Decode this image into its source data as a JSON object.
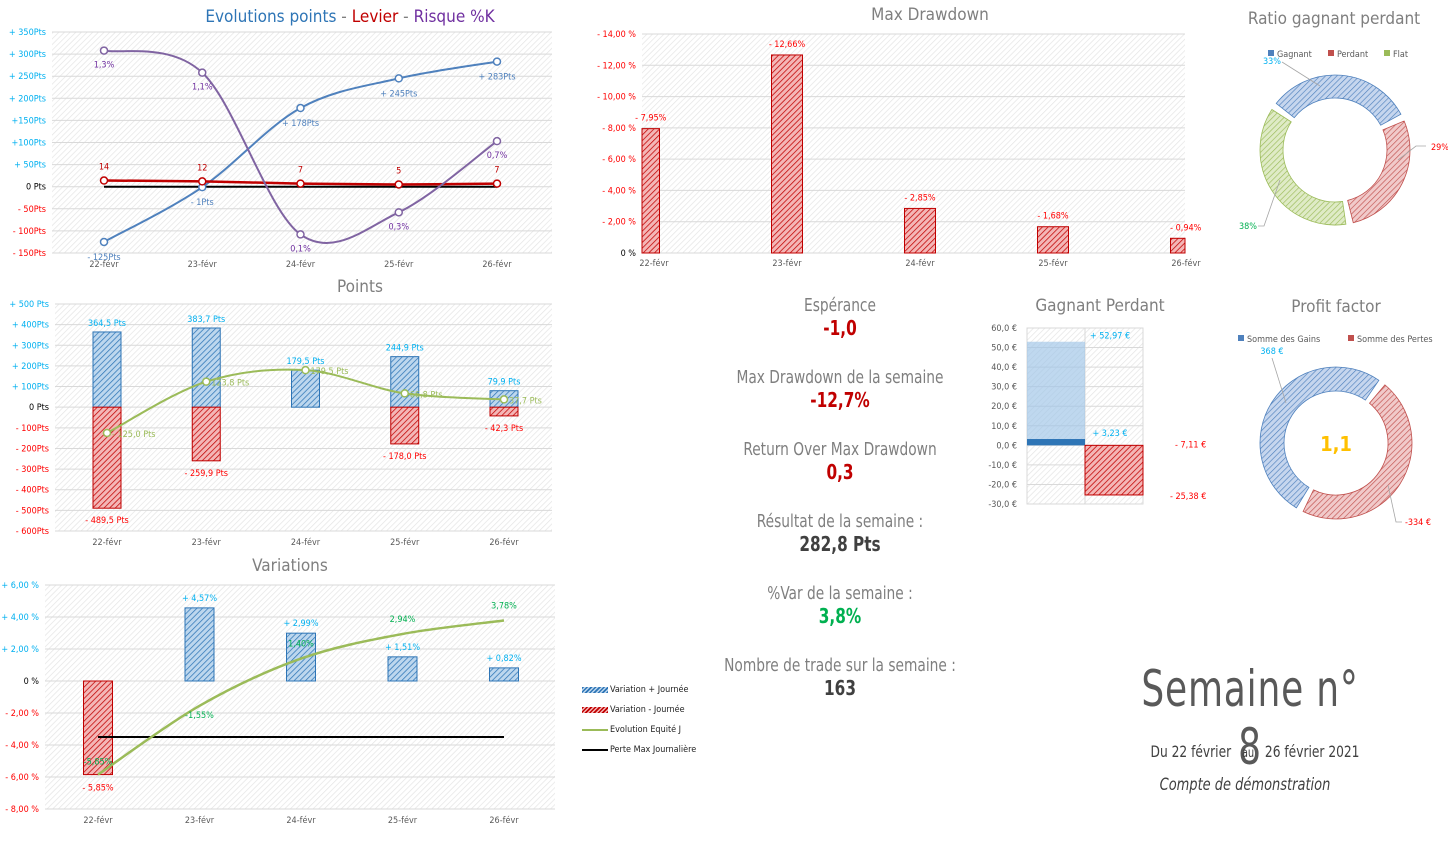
{
  "colors": {
    "blue": "#4f81bd",
    "cyan": "#00b0f0",
    "red": "#c00000",
    "bright_red": "#ff0000",
    "purple": "#7030a0",
    "green_line": "#9bbb59",
    "green_text": "#00b050",
    "gold": "#ffc000",
    "grey": "#7f7f7f"
  },
  "chart_data": [
    {
      "id": "evolution",
      "type": "line",
      "title_parts": [
        "Evolutions points",
        " - ",
        "Levier",
        " - ",
        "Risque %K"
      ],
      "categories": [
        "22-févr",
        "23-févr",
        "24-févr",
        "25-févr",
        "26-févr"
      ],
      "ylim": [
        -150,
        350
      ],
      "yticks": [
        350,
        300,
        250,
        200,
        150,
        100,
        50,
        0,
        -50,
        -100,
        -150
      ],
      "ytick_labels": [
        "+ 350Pts",
        "+ 300Pts",
        "+ 250Pts",
        "+ 200Pts",
        "+150Pts",
        "+100Pts",
        "+ 50Pts",
        "0 Pts",
        "- 50Pts",
        "- 100Pts",
        "- 150Pts"
      ],
      "series": [
        {
          "name": "Points",
          "values": [
            -125,
            -1,
            178,
            245,
            283
          ],
          "labels": [
            "- 125Pts",
            "- 1Pts",
            "+ 178Pts",
            "+ 245Pts",
            "+ 283Pts"
          ]
        },
        {
          "name": "Levier",
          "values": [
            14,
            12,
            7,
            5,
            7
          ],
          "labels": [
            "14",
            "12",
            "7",
            "5",
            "7"
          ]
        },
        {
          "name": "Risque %K",
          "values": [
            1.3,
            1.1,
            0.1,
            0.3,
            0.7
          ],
          "labels": [
            "1,3%",
            "1,1%",
            "0,1%",
            "0,3%",
            "0,7%"
          ],
          "plot_positions": [
            308,
            258,
            -108,
            -58,
            103
          ]
        },
        {
          "name": "Zero",
          "values": [
            0,
            0,
            0,
            0,
            0
          ]
        }
      ],
      "grid": true
    },
    {
      "id": "points",
      "type": "bar",
      "title": "Points",
      "categories": [
        "22-févr",
        "23-févr",
        "24-févr",
        "25-févr",
        "26-févr"
      ],
      "ylim": [
        -600,
        500
      ],
      "yticks": [
        500,
        400,
        300,
        200,
        100,
        0,
        -100,
        -200,
        -300,
        -400,
        -500,
        -600
      ],
      "ytick_labels": [
        "+ 500 Pts",
        "+ 400Pts",
        "+ 300Pts",
        "+ 200Pts",
        "+ 100Pts",
        "0 Pts",
        "- 100Pts",
        "- 200Pts",
        "- 300Pts",
        "- 400Pts",
        "- 500Pts",
        "- 600Pts"
      ],
      "series": [
        {
          "name": "Gains",
          "values": [
            364.5,
            383.7,
            179.5,
            244.9,
            79.9
          ],
          "labels": [
            "364,5 Pts",
            "383,7 Pts",
            "179,5 Pts",
            "244,9 Pts",
            "79,9 Pts"
          ]
        },
        {
          "name": "Pertes",
          "values": [
            -489.5,
            -259.9,
            0,
            -178.0,
            -42.3
          ],
          "labels": [
            "- 489,5 Pts",
            "- 259,9 Pts",
            "",
            "- 178,0 Pts",
            "- 42,3 Pts"
          ]
        },
        {
          "name": "Net",
          "values": [
            -125.0,
            123.8,
            179.5,
            66.8,
            37.7
          ],
          "labels": [
            "- 125,0 Pts",
            "123,8 Pts",
            "179,5 Pts",
            "66,8 Pts",
            "37,7 Pts"
          ]
        }
      ],
      "grid": true
    },
    {
      "id": "variations",
      "type": "bar",
      "title": "Variations",
      "categories": [
        "22-févr",
        "23-févr",
        "24-févr",
        "25-févr",
        "26-févr"
      ],
      "ylim": [
        -8,
        6
      ],
      "yticks": [
        6,
        4,
        2,
        0,
        -2,
        -4,
        -6,
        -8
      ],
      "ytick_labels": [
        "+ 6,00 %",
        "+ 4,00 %",
        "+ 2,00 %",
        "0 %",
        "- 2,00 %",
        "- 4,00 %",
        "- 6,00 %",
        "- 8,00 %"
      ],
      "series": [
        {
          "name": "Variation + Journée",
          "values": [
            0,
            4.57,
            2.99,
            1.51,
            0.82
          ],
          "labels": [
            "",
            "+ 4,57%",
            "+ 2,99%",
            "+ 1,51%",
            "+ 0,82%"
          ]
        },
        {
          "name": "Variation - Journée",
          "values": [
            -5.85,
            0,
            0,
            0,
            0
          ],
          "labels": [
            "- 5,85%",
            "",
            "",
            "",
            ""
          ]
        },
        {
          "name": "Evolution  Equité J",
          "values": [
            -5.85,
            -1.55,
            1.4,
            2.94,
            3.78
          ],
          "labels": [
            "-5,85%",
            "-1,55%",
            "1,40%",
            "2,94%",
            "3,78%"
          ]
        },
        {
          "name": "Perte Max Journalière",
          "values": [
            -3.5,
            -3.5,
            -3.5,
            -3.5,
            -3.5
          ]
        }
      ],
      "legend": [
        "Variation + Journée",
        "Variation - Journée",
        "Evolution  Equité J",
        "Perte Max Journalière"
      ],
      "legend_position": "right",
      "grid": true
    },
    {
      "id": "drawdown",
      "type": "bar",
      "title": "Max Drawdown",
      "categories": [
        "22-févr",
        "23-févr",
        "24-févr",
        "25-févr",
        "26-févr"
      ],
      "ylim": [
        0,
        14
      ],
      "yticks": [
        14,
        12,
        10,
        8,
        6,
        4,
        2,
        0
      ],
      "ytick_labels": [
        "- 14,00 %",
        "- 12,00 %",
        "- 10,00 %",
        "- 8,00 %",
        "- 6,00 %",
        "- 4,00 %",
        "- 2,00 %",
        "0 %"
      ],
      "values": [
        7.95,
        12.66,
        2.85,
        1.68,
        0.94
      ],
      "labels": [
        "- 7,95%",
        "- 12,66%",
        "- 2,85%",
        "- 1,68%",
        "- 0,94%"
      ],
      "grid": true
    },
    {
      "id": "ratio",
      "type": "pie",
      "title": "Ratio gagnant perdant",
      "legend": [
        "Gagnant",
        "Perdant",
        "Flat"
      ],
      "values": [
        33,
        29,
        38
      ],
      "labels": [
        "33%",
        "29%",
        "38%"
      ]
    },
    {
      "id": "gagnant_perdant",
      "type": "bar",
      "title": "Gagnant Perdant",
      "ylim": [
        -30,
        60
      ],
      "yticks": [
        60,
        50,
        40,
        30,
        20,
        10,
        0,
        -10,
        -20,
        -30
      ],
      "ytick_labels": [
        "60,0 €",
        "50,0 €",
        "40,0 €",
        "30,0 €",
        "20,0 €",
        "10,0 €",
        "0,0 €",
        "-10,0 €",
        "-20,0 €",
        "-30,0 €"
      ],
      "series": [
        {
          "name": "Gagnant",
          "values": [
            52.97,
            3.23
          ],
          "labels": [
            "+ 52,97 €",
            "+ 3,23 €"
          ]
        },
        {
          "name": "Perdant",
          "values": [
            -7.11,
            -25.38
          ],
          "labels": [
            "- 7,11 €",
            "- 25,38 €"
          ]
        }
      ]
    },
    {
      "id": "profit_factor",
      "type": "pie",
      "title": "Profit factor",
      "legend": [
        "Somme des Gains",
        "Somme des Pertes"
      ],
      "values": [
        368,
        334
      ],
      "labels": [
        "368 €",
        "-334 €"
      ],
      "center_label": "1,1"
    }
  ],
  "kpis": [
    {
      "label": "Espérance",
      "value": "-1,0",
      "color": "#c00000"
    },
    {
      "label": "Max Drawdown de la semaine",
      "value": "-12,7%",
      "color": "#c00000"
    },
    {
      "label": "Return Over Max Drawdown",
      "value": "0,3",
      "color": "#c00000"
    },
    {
      "label": "Résultat de la semaine :",
      "value": "282,8 Pts",
      "color": "#404040"
    },
    {
      "label": "%Var de la semaine :",
      "value": "3,8%",
      "color": "#00b050"
    },
    {
      "label": "Nombre de trade sur la semaine :",
      "value": "163",
      "color": "#404040"
    }
  ],
  "week": {
    "title": "Semaine n° 8",
    "from_label": "Du 22 février",
    "au": "au",
    "to_label": "26 février 2021",
    "account": "Compte de démonstration"
  }
}
